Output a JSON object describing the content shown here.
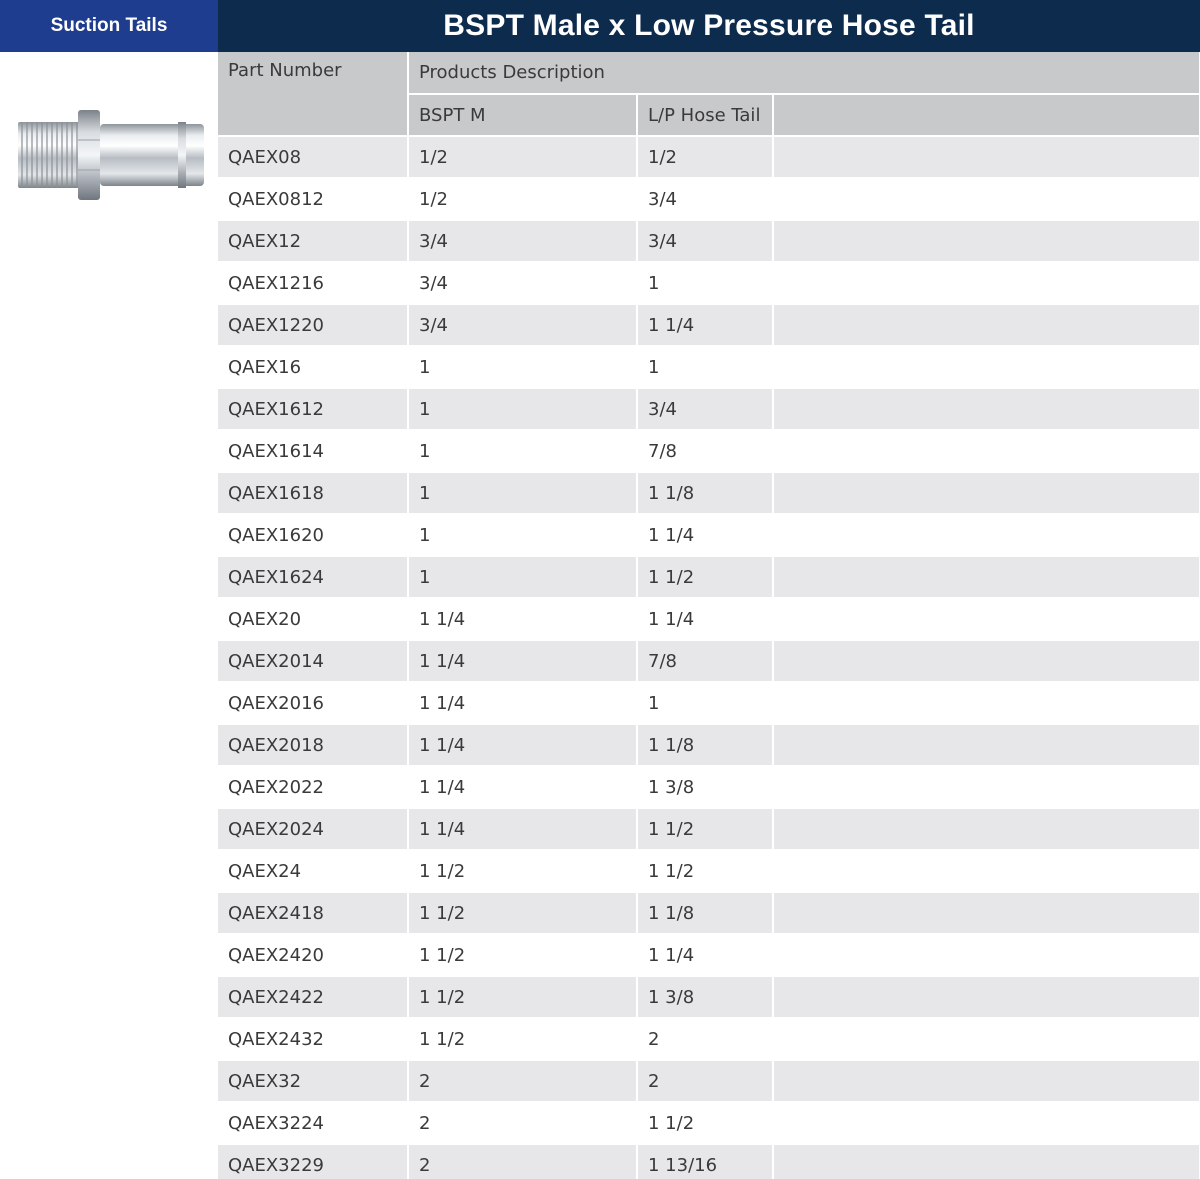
{
  "header": {
    "category": "Suction Tails",
    "title": "BSPT Male x Low Pressure Hose Tail"
  },
  "table": {
    "part_number_header": "Part Number",
    "description_header": "Products Description",
    "columns": [
      "BSPT M",
      "L/P Hose Tail"
    ],
    "rows": [
      {
        "part": "QAEX08",
        "bspt": "1/2",
        "tail": "1/2"
      },
      {
        "part": "QAEX0812",
        "bspt": "1/2",
        "tail": "3/4"
      },
      {
        "part": "QAEX12",
        "bspt": "3/4",
        "tail": "3/4"
      },
      {
        "part": "QAEX1216",
        "bspt": "3/4",
        "tail": "1"
      },
      {
        "part": "QAEX1220",
        "bspt": "3/4",
        "tail": "1 1/4"
      },
      {
        "part": "QAEX16",
        "bspt": "1",
        "tail": "1"
      },
      {
        "part": "QAEX1612",
        "bspt": "1",
        "tail": "3/4"
      },
      {
        "part": "QAEX1614",
        "bspt": "1",
        "tail": "7/8"
      },
      {
        "part": "QAEX1618",
        "bspt": "1",
        "tail": "1 1/8"
      },
      {
        "part": "QAEX1620",
        "bspt": "1",
        "tail": "1 1/4"
      },
      {
        "part": "QAEX1624",
        "bspt": "1",
        "tail": "1 1/2"
      },
      {
        "part": "QAEX20",
        "bspt": "1 1/4",
        "tail": "1 1/4"
      },
      {
        "part": "QAEX2014",
        "bspt": "1 1/4",
        "tail": "7/8"
      },
      {
        "part": "QAEX2016",
        "bspt": "1 1/4",
        "tail": "1"
      },
      {
        "part": "QAEX2018",
        "bspt": "1 1/4",
        "tail": "1 1/8"
      },
      {
        "part": "QAEX2022",
        "bspt": "1 1/4",
        "tail": "1 3/8"
      },
      {
        "part": "QAEX2024",
        "bspt": "1 1/4",
        "tail": "1 1/2"
      },
      {
        "part": "QAEX24",
        "bspt": "1 1/2",
        "tail": "1 1/2"
      },
      {
        "part": "QAEX2418",
        "bspt": "1 1/2",
        "tail": "1 1/8"
      },
      {
        "part": "QAEX2420",
        "bspt": "1 1/2",
        "tail": "1 1/4"
      },
      {
        "part": "QAEX2422",
        "bspt": "1 1/2",
        "tail": "1 3/8"
      },
      {
        "part": "QAEX2432",
        "bspt": "1 1/2",
        "tail": "2"
      },
      {
        "part": "QAEX32",
        "bspt": "2",
        "tail": "2"
      },
      {
        "part": "QAEX3224",
        "bspt": "2",
        "tail": "1 1/2"
      },
      {
        "part": "QAEX3229",
        "bspt": "2",
        "tail": "1 13/16"
      }
    ]
  },
  "colors": {
    "category_bar": "#1f3d8e",
    "title_bar": "#0d2b4d",
    "header_cells": "#c8c9cb",
    "striped_row": "#e7e7e9"
  },
  "image": {
    "icon": "hose-tail-fitting-icon"
  }
}
